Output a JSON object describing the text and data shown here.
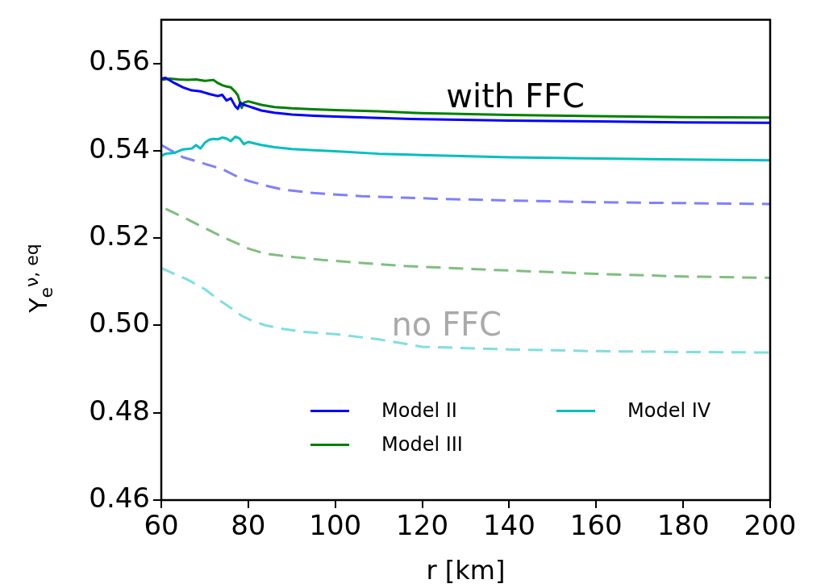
{
  "chart_data": {
    "type": "line",
    "xlabel": "r [km]",
    "ylabel": "Y$_{e}$$^{ν, eq}$",
    "xlim": [
      60,
      200
    ],
    "xticks": [
      60,
      80,
      100,
      120,
      140,
      160,
      180,
      200
    ],
    "ylim": [
      0.46,
      0.57
    ],
    "yticks": [
      0.46,
      0.48,
      {
        "value": 0.5,
        "label": "0.50"
      },
      0.52,
      0.54,
      0.56
    ],
    "grid": false,
    "legend": "bottom right",
    "marker": "none",
    "series": [
      {
        "name": "Model II",
        "color": "#0000ff",
        "line_style": "solid",
        "x": [
          60,
          61,
          63,
          65,
          67,
          69,
          71,
          73,
          74,
          75,
          76,
          77,
          77.6,
          78.2,
          79,
          80,
          83,
          86,
          90,
          95,
          100,
          110,
          120,
          140,
          160,
          180,
          200
        ],
        "values": [
          0.5565,
          0.5567,
          0.5555,
          0.5545,
          0.5538,
          0.5536,
          0.553,
          0.5525,
          0.5528,
          0.5515,
          0.552,
          0.5502,
          0.5496,
          0.551,
          0.5505,
          0.5502,
          0.5492,
          0.5487,
          0.5483,
          0.548,
          0.5478,
          0.5475,
          0.5472,
          0.5469,
          0.5467,
          0.5465,
          0.5464
        ]
      },
      {
        "name": "Model III",
        "color": "#008000",
        "line_style": "solid",
        "x": [
          60,
          62,
          64,
          66,
          68,
          70,
          72,
          73,
          74,
          75,
          76,
          77,
          77.6,
          78.5,
          79,
          80,
          83,
          86,
          90,
          95,
          100,
          110,
          120,
          140,
          160,
          180,
          200
        ],
        "values": [
          0.5562,
          0.5565,
          0.5563,
          0.5562,
          0.5563,
          0.556,
          0.5562,
          0.5555,
          0.555,
          0.5547,
          0.5545,
          0.5535,
          0.5527,
          0.5498,
          0.551,
          0.5513,
          0.5505,
          0.55,
          0.5497,
          0.5495,
          0.5493,
          0.549,
          0.5486,
          0.5482,
          0.5479,
          0.5477,
          0.5476
        ]
      },
      {
        "name": "Model IV",
        "color": "#00bfbf",
        "line_style": "solid",
        "x": [
          60,
          61,
          63,
          65,
          67,
          68,
          69,
          70,
          71,
          72,
          73,
          74,
          75,
          76,
          77,
          78,
          79,
          80,
          83,
          86,
          90,
          95,
          100,
          110,
          120,
          140,
          160,
          180,
          200
        ],
        "values": [
          0.5388,
          0.5393,
          0.5395,
          0.5403,
          0.5405,
          0.5413,
          0.5405,
          0.5418,
          0.5425,
          0.5427,
          0.5426,
          0.543,
          0.5428,
          0.5422,
          0.5432,
          0.5428,
          0.5415,
          0.542,
          0.5413,
          0.5408,
          0.5404,
          0.5401,
          0.5399,
          0.5393,
          0.539,
          0.5385,
          0.5382,
          0.538,
          0.5378
        ]
      },
      {
        "color": "#7f7fff",
        "line_style": "dashed",
        "x": [
          60,
          65,
          70,
          74,
          78,
          80,
          84,
          88,
          95,
          106,
          123,
          140,
          160,
          180,
          200
        ],
        "values": [
          0.5413,
          0.5385,
          0.537,
          0.5358,
          0.5338,
          0.5331,
          0.532,
          0.5311,
          0.5303,
          0.5296,
          0.529,
          0.5286,
          0.5282,
          0.528,
          0.5278
        ]
      },
      {
        "color": "#7fbf7f",
        "line_style": "dashed",
        "x": [
          61,
          66,
          71,
          74,
          77.6,
          80,
          84,
          90,
          97,
          106,
          116,
          134,
          160,
          180,
          200
        ],
        "values": [
          0.5267,
          0.5243,
          0.5218,
          0.5203,
          0.5187,
          0.5176,
          0.5164,
          0.5157,
          0.515,
          0.5143,
          0.5136,
          0.5128,
          0.5118,
          0.5112,
          0.5109
        ]
      },
      {
        "color": "#7fdfdf",
        "line_style": "dashed",
        "x": [
          60,
          63,
          66,
          70,
          73,
          76,
          78.5,
          81,
          84,
          88,
          93,
          100,
          110,
          120,
          140,
          160,
          180,
          200
        ],
        "values": [
          0.5131,
          0.5118,
          0.5105,
          0.5083,
          0.506,
          0.504,
          0.5022,
          0.501,
          0.5,
          0.4992,
          0.4985,
          0.498,
          0.4968,
          0.4951,
          0.4945,
          0.4941,
          0.4939,
          0.4938
        ]
      }
    ],
    "annotations": [
      "with FFC",
      "no FFC"
    ]
  }
}
